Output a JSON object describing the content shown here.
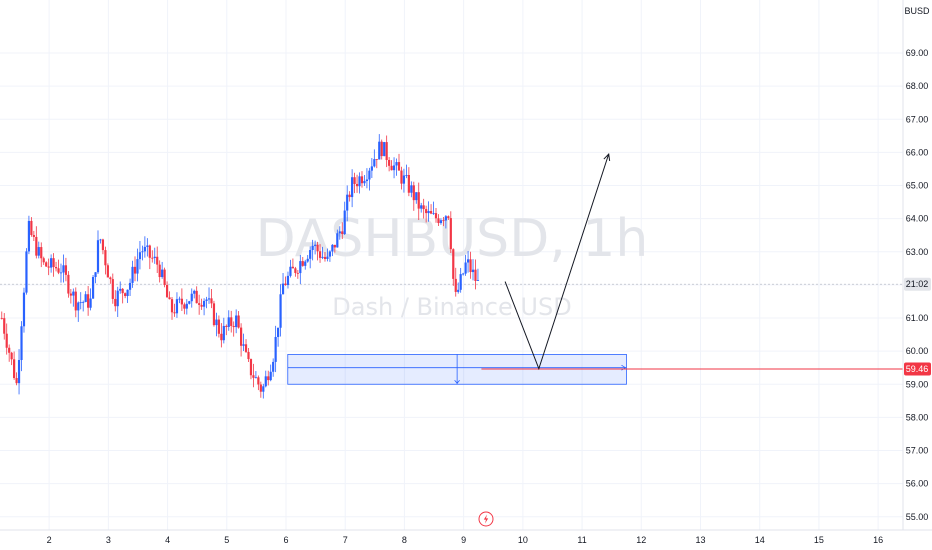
{
  "chart_data": {
    "type": "candlestick",
    "symbol_watermark": "DASHBUSD, 1h",
    "description_watermark": "Dash / Binance USD",
    "currency_label": "BUSD",
    "y_ticks": [
      "69.00",
      "68.00",
      "67.00",
      "66.00",
      "65.00",
      "64.00",
      "63.00",
      "62.00",
      "61.00",
      "60.00",
      "59.00",
      "58.00",
      "57.00",
      "56.00",
      "55.00"
    ],
    "y_range": [
      54.6,
      70.6
    ],
    "x_ticks": [
      {
        "label": "2",
        "day": 2
      },
      {
        "label": "3",
        "day": 3
      },
      {
        "label": "4",
        "day": 4
      },
      {
        "label": "5",
        "day": 5
      },
      {
        "label": "6",
        "day": 6
      },
      {
        "label": "7",
        "day": 7
      },
      {
        "label": "8",
        "day": 8
      },
      {
        "label": "9",
        "day": 9
      },
      {
        "label": "10",
        "day": 10
      },
      {
        "label": "11",
        "day": 11
      },
      {
        "label": "12",
        "day": 12
      },
      {
        "label": "13",
        "day": 13
      },
      {
        "label": "14",
        "day": 14
      },
      {
        "label": "15",
        "day": 15
      },
      {
        "label": "16",
        "day": 16
      }
    ],
    "x_range": [
      1.17,
      16.42
    ],
    "time_badge": "21:02",
    "current_price": 62.02,
    "price_badge": "59.46",
    "price_line": 59.46,
    "colors": {
      "up": "#2962ff",
      "down": "#f23645",
      "zone": "#2962ff",
      "price_line": "#f23645",
      "arrow": "#131722",
      "lightning": "#f23645"
    },
    "zone": {
      "x_start": 6.03,
      "x_end": 11.75,
      "y_top": 59.9,
      "y_bottom": 59.0,
      "mid": 59.5
    },
    "projection_path": [
      {
        "day": 9.7,
        "price": 62.1
      },
      {
        "day": 10.27,
        "price": 59.47
      },
      {
        "day": 11.45,
        "price": 65.95
      }
    ],
    "price_path": [
      [
        1.2,
        61.0
      ],
      [
        1.45,
        59.0
      ],
      [
        1.65,
        63.7
      ],
      [
        1.9,
        62.6
      ],
      [
        2.2,
        62.5
      ],
      [
        2.45,
        61.5
      ],
      [
        2.7,
        61.5
      ],
      [
        2.85,
        63.5
      ],
      [
        3.1,
        61.6
      ],
      [
        3.35,
        62.0
      ],
      [
        3.55,
        63.1
      ],
      [
        3.85,
        62.6
      ],
      [
        4.05,
        61.2
      ],
      [
        4.35,
        61.6
      ],
      [
        4.65,
        61.6
      ],
      [
        4.9,
        60.5
      ],
      [
        5.15,
        61.0
      ],
      [
        5.35,
        59.6
      ],
      [
        5.6,
        58.8
      ],
      [
        5.8,
        60.0
      ],
      [
        5.95,
        62.0
      ],
      [
        6.2,
        62.6
      ],
      [
        6.45,
        63.2
      ],
      [
        6.7,
        62.7
      ],
      [
        6.95,
        63.8
      ],
      [
        7.1,
        65.0
      ],
      [
        7.35,
        65.4
      ],
      [
        7.6,
        66.2
      ],
      [
        7.85,
        65.5
      ],
      [
        8.1,
        64.9
      ],
      [
        8.3,
        64.2
      ],
      [
        8.5,
        64.0
      ],
      [
        8.75,
        64.2
      ],
      [
        8.85,
        61.5
      ],
      [
        9.05,
        62.7
      ],
      [
        9.25,
        62.0
      ]
    ]
  }
}
